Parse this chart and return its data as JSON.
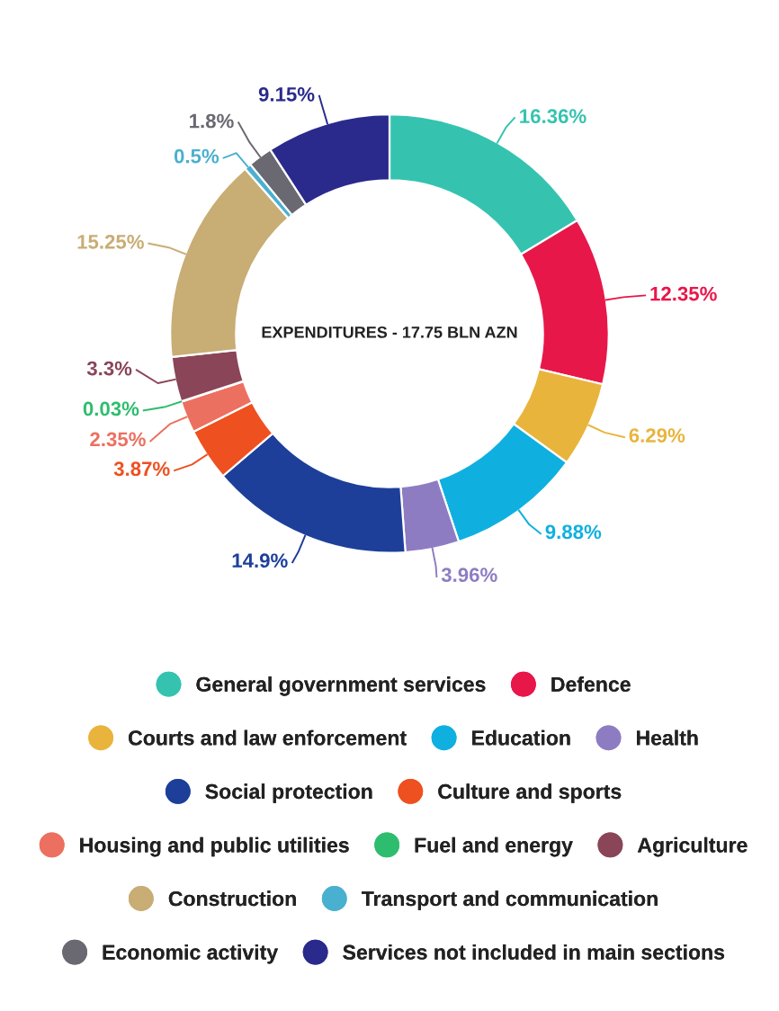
{
  "chart_data": {
    "type": "donut",
    "annotations": [
      "EXPENDITURES - 17.75 BLN AZN"
    ],
    "categories": [
      "General government services",
      "Defence",
      "Courts and law enforcement",
      "Education",
      "Health",
      "Social protection",
      "Culture and sports",
      "Housing and public utilities",
      "Fuel and energy",
      "Agriculture",
      "Construction",
      "Transport and communication",
      "Economic activity",
      "Services not included in main sections"
    ],
    "values": [
      16.36,
      12.35,
      6.29,
      9.88,
      3.96,
      14.9,
      3.87,
      2.35,
      0.03,
      3.3,
      15.25,
      0.5,
      1.8,
      9.15
    ],
    "value_labels": [
      "16.36%",
      "12.35%",
      "6.29%",
      "9.88%",
      "3.96%",
      "14.9%",
      "3.87%",
      "2.35%",
      "0.03%",
      "3.3%",
      "15.25%",
      "0.5%",
      "1.8%",
      "9.15%"
    ],
    "colors": [
      "#35c3b0",
      "#e8174a",
      "#e9b43c",
      "#0fb0e0",
      "#8e7cc3",
      "#1d3f9a",
      "#ee5020",
      "#ec7060",
      "#2ebd6e",
      "#8a4558",
      "#c8ad74",
      "#4ab0cf",
      "#6a6870",
      "#2a2a8c"
    ],
    "legend": "bottom"
  }
}
